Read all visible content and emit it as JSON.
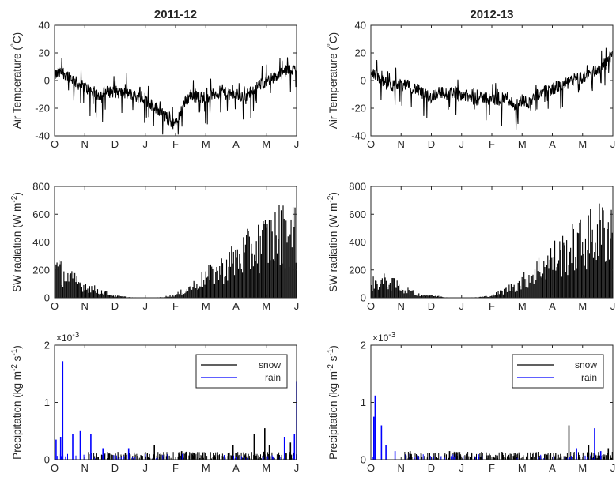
{
  "figure": {
    "background": "#ffffff",
    "axis_color": "#262626",
    "series_colors": {
      "black": "#000000",
      "blue": "#0000ff"
    }
  },
  "chart_data": [
    {
      "id": "temp-2011-12",
      "type": "line",
      "title": "2011-12",
      "ylabel": "Air Temperature (°C)",
      "xlabel": "",
      "x_tick_labels": [
        "O",
        "N",
        "D",
        "J",
        "F",
        "M",
        "A",
        "M",
        "J"
      ],
      "ylim": [
        -40,
        40
      ],
      "y_ticks": [
        -40,
        -20,
        0,
        20,
        40
      ],
      "grid": false,
      "series": [
        {
          "color": "#000000",
          "approximate_trace": [
            [
              0,
              4
            ],
            [
              0.25,
              6
            ],
            [
              0.5,
              3
            ],
            [
              0.75,
              -2
            ],
            [
              1,
              -5
            ],
            [
              1.25,
              -8
            ],
            [
              1.5,
              -10
            ],
            [
              1.75,
              -8
            ],
            [
              2,
              -8
            ],
            [
              2.25,
              -9
            ],
            [
              2.5,
              -10
            ],
            [
              2.75,
              -12
            ],
            [
              3,
              -14
            ],
            [
              3.25,
              -18
            ],
            [
              3.5,
              -22
            ],
            [
              3.75,
              -28
            ],
            [
              4,
              -32
            ],
            [
              4.25,
              -18
            ],
            [
              4.5,
              -10
            ],
            [
              4.75,
              -12
            ],
            [
              5,
              -12
            ],
            [
              5.25,
              -10
            ],
            [
              5.5,
              -8
            ],
            [
              5.75,
              -10
            ],
            [
              6,
              -10
            ],
            [
              6.25,
              -12
            ],
            [
              6.5,
              -8
            ],
            [
              6.75,
              -4
            ],
            [
              7,
              0
            ],
            [
              7.25,
              2
            ],
            [
              7.5,
              5
            ],
            [
              7.75,
              8
            ],
            [
              8,
              8
            ]
          ]
        }
      ]
    },
    {
      "id": "temp-2012-13",
      "type": "line",
      "title": "2012-13",
      "ylabel": "Air Temperature (°C)",
      "xlabel": "",
      "x_tick_labels": [
        "O",
        "N",
        "D",
        "J",
        "F",
        "M",
        "A",
        "M",
        "J"
      ],
      "ylim": [
        -40,
        40
      ],
      "y_ticks": [
        -40,
        -20,
        0,
        20,
        40
      ],
      "grid": false,
      "series": [
        {
          "color": "#000000",
          "approximate_trace": [
            [
              0,
              8
            ],
            [
              0.25,
              2
            ],
            [
              0.5,
              -2
            ],
            [
              0.75,
              -4
            ],
            [
              1,
              -3
            ],
            [
              1.25,
              -4
            ],
            [
              1.5,
              -6
            ],
            [
              1.75,
              -10
            ],
            [
              2,
              -12
            ],
            [
              2.25,
              -8
            ],
            [
              2.5,
              -10
            ],
            [
              2.75,
              -8
            ],
            [
              3,
              -10
            ],
            [
              3.25,
              -12
            ],
            [
              3.5,
              -14
            ],
            [
              3.75,
              -12
            ],
            [
              4,
              -14
            ],
            [
              4.25,
              -14
            ],
            [
              4.5,
              -12
            ],
            [
              4.75,
              -18
            ],
            [
              5,
              -14
            ],
            [
              5.25,
              -16
            ],
            [
              5.5,
              -10
            ],
            [
              5.75,
              -8
            ],
            [
              6,
              -6
            ],
            [
              6.25,
              -4
            ],
            [
              6.5,
              -2
            ],
            [
              6.75,
              1
            ],
            [
              7,
              2
            ],
            [
              7.25,
              5
            ],
            [
              7.5,
              8
            ],
            [
              7.75,
              12
            ],
            [
              8,
              20
            ]
          ]
        }
      ]
    },
    {
      "id": "sw-2011-12",
      "type": "bar",
      "title": "",
      "ylabel": "SW radiation (W m^-2)",
      "ylabel_base": "SW radiation (W m",
      "ylabel_exp": "-2",
      "ylabel_close": ")",
      "xlabel": "",
      "x_tick_labels": [
        "O",
        "N",
        "D",
        "J",
        "F",
        "M",
        "A",
        "M",
        "J"
      ],
      "ylim": [
        0,
        800
      ],
      "y_ticks": [
        0,
        200,
        400,
        600,
        800
      ],
      "grid": false,
      "series": [
        {
          "color": "#000000",
          "approximate_daily_max_envelope": [
            [
              0,
              320
            ],
            [
              0.5,
              210
            ],
            [
              1,
              130
            ],
            [
              1.5,
              70
            ],
            [
              2,
              20
            ],
            [
              2.5,
              5
            ],
            [
              3,
              0
            ],
            [
              3.5,
              5
            ],
            [
              4,
              30
            ],
            [
              4.5,
              110
            ],
            [
              5,
              220
            ],
            [
              5.5,
              300
            ],
            [
              6,
              420
            ],
            [
              6.5,
              520
            ],
            [
              7,
              620
            ],
            [
              7.5,
              700
            ],
            [
              8,
              720
            ]
          ]
        }
      ]
    },
    {
      "id": "sw-2012-13",
      "type": "bar",
      "title": "",
      "ylabel": "SW radiation (W m^-2)",
      "ylabel_base": "SW radiation (W m",
      "ylabel_exp": "-2",
      "ylabel_close": ")",
      "xlabel": "",
      "x_tick_labels": [
        "O",
        "N",
        "D",
        "J",
        "F",
        "M",
        "A",
        "M",
        "J"
      ],
      "ylim": [
        0,
        800
      ],
      "y_ticks": [
        0,
        200,
        400,
        600,
        800
      ],
      "grid": false,
      "series": [
        {
          "color": "#000000",
          "approximate_daily_max_envelope": [
            [
              0,
              150
            ],
            [
              0.5,
              180
            ],
            [
              1,
              110
            ],
            [
              1.5,
              40
            ],
            [
              2,
              25
            ],
            [
              2.5,
              5
            ],
            [
              3,
              0
            ],
            [
              3.5,
              5
            ],
            [
              4,
              20
            ],
            [
              4.5,
              90
            ],
            [
              5,
              170
            ],
            [
              5.5,
              300
            ],
            [
              6,
              420
            ],
            [
              6.5,
              500
            ],
            [
              7,
              600
            ],
            [
              7.5,
              700
            ],
            [
              8,
              760
            ]
          ]
        }
      ]
    },
    {
      "id": "precip-2011-12",
      "type": "bar",
      "title": "",
      "ylabel": "Precipitation (kg m^-2 s^-1)",
      "ylabel_base": "Precipitation (kg m",
      "ylabel_exp1": "-2",
      "ylabel_mid": " s",
      "ylabel_exp2": "-1",
      "ylabel_close": ")",
      "xlabel": "",
      "x_tick_labels": [
        "O",
        "N",
        "D",
        "J",
        "F",
        "M",
        "A",
        "M",
        "J"
      ],
      "ylim": [
        0,
        0.002
      ],
      "y_ticks": [
        0,
        1,
        2
      ],
      "y_exponent_base": "×10",
      "y_exponent_power": "-3",
      "legend": {
        "placement": "top-right",
        "entries": [
          "snow",
          "rain"
        ]
      },
      "grid": false,
      "series": [
        {
          "name": "snow",
          "color": "#000000",
          "peaks": [
            [
              3.3,
              0.00025
            ],
            [
              4.2,
              0.00015
            ],
            [
              5.9,
              0.00025
            ],
            [
              6.6,
              0.00045
            ],
            [
              6.95,
              0.00055
            ],
            [
              7.1,
              0.00025
            ],
            [
              7.8,
              0.0003
            ]
          ]
        },
        {
          "name": "rain",
          "color": "#0000ff",
          "peaks": [
            [
              0.05,
              0.00035
            ],
            [
              0.2,
              0.0004
            ],
            [
              0.27,
              0.00172
            ],
            [
              0.6,
              0.00045
            ],
            [
              0.85,
              0.0005
            ],
            [
              1.2,
              0.00045
            ],
            [
              1.6,
              0.0002
            ],
            [
              2.45,
              0.0002
            ],
            [
              7.6,
              0.0004
            ],
            [
              7.93,
              0.00045
            ],
            [
              8.0,
              0.00136
            ]
          ]
        }
      ]
    },
    {
      "id": "precip-2012-13",
      "type": "bar",
      "title": "",
      "ylabel": "Precipitation (kg m^-2 s^-1)",
      "ylabel_base": "Precipitation (kg m",
      "ylabel_exp1": "-2",
      "ylabel_mid": " s",
      "ylabel_exp2": "-1",
      "ylabel_close": ")",
      "xlabel": "",
      "x_tick_labels": [
        "O",
        "N",
        "D",
        "J",
        "F",
        "M",
        "A",
        "M",
        "J"
      ],
      "ylim": [
        0,
        0.002
      ],
      "y_ticks": [
        0,
        1,
        2
      ],
      "y_exponent_base": "×10",
      "y_exponent_power": "-3",
      "legend": {
        "placement": "top-right",
        "entries": [
          "snow",
          "rain"
        ]
      },
      "grid": false,
      "series": [
        {
          "name": "snow",
          "color": "#000000",
          "peaks": [
            [
              1.3,
              0.00015
            ],
            [
              2.6,
              0.00015
            ],
            [
              6.55,
              0.0006
            ],
            [
              7.2,
              0.00025
            ],
            [
              7.85,
              0.0002
            ]
          ]
        },
        {
          "name": "rain",
          "color": "#0000ff",
          "peaks": [
            [
              0.1,
              0.00075
            ],
            [
              0.14,
              0.00112
            ],
            [
              0.35,
              0.0006
            ],
            [
              0.5,
              0.00025
            ],
            [
              0.8,
              0.00015
            ],
            [
              6.8,
              0.0002
            ],
            [
              7.4,
              0.00055
            ],
            [
              7.6,
              0.00015
            ]
          ]
        }
      ]
    }
  ]
}
